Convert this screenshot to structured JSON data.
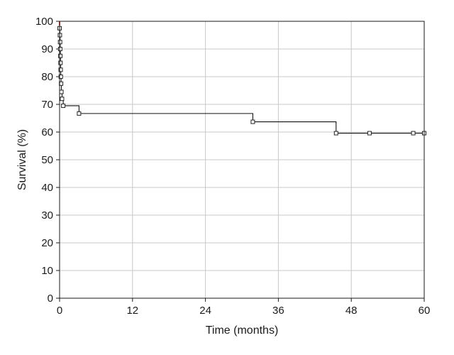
{
  "chart_data": {
    "type": "line",
    "subtype": "kaplan-meier-step",
    "title": "",
    "xlabel": "Time (months)",
    "ylabel": "Survival (%)",
    "xlim": [
      0,
      60
    ],
    "ylim": [
      0,
      100
    ],
    "x_ticks": [
      0,
      12,
      24,
      36,
      48,
      60
    ],
    "y_ticks": [
      0,
      10,
      20,
      30,
      40,
      50,
      60,
      70,
      80,
      90,
      100
    ],
    "grid": true,
    "legend": "none",
    "colors": {
      "line": "#111111",
      "censor": "#222222",
      "start_marker": "#e05050",
      "grid": "#c8c8c8"
    },
    "series": [
      {
        "steps": [
          {
            "x": 0,
            "y": 100
          },
          {
            "x": 0,
            "y": 97.5
          },
          {
            "x": 0.05,
            "y": 95
          },
          {
            "x": 0.08,
            "y": 92.5
          },
          {
            "x": 0.1,
            "y": 90
          },
          {
            "x": 0.12,
            "y": 87.5
          },
          {
            "x": 0.15,
            "y": 85
          },
          {
            "x": 0.18,
            "y": 82.5
          },
          {
            "x": 0.2,
            "y": 80
          },
          {
            "x": 0.25,
            "y": 77.5
          },
          {
            "x": 0.3,
            "y": 74.5
          },
          {
            "x": 0.4,
            "y": 72
          },
          {
            "x": 0.6,
            "y": 69.5
          },
          {
            "x": 3.2,
            "y": 66.7
          },
          {
            "x": 31.8,
            "y": 63.7
          },
          {
            "x": 45.5,
            "y": 59.6
          }
        ],
        "end_x": 60,
        "censored": [
          {
            "x": 0,
            "y": 97.5
          },
          {
            "x": 0.05,
            "y": 95
          },
          {
            "x": 0.08,
            "y": 92.5
          },
          {
            "x": 0.1,
            "y": 90
          },
          {
            "x": 0.12,
            "y": 87.5
          },
          {
            "x": 0.15,
            "y": 85
          },
          {
            "x": 0.18,
            "y": 82.5
          },
          {
            "x": 0.2,
            "y": 80
          },
          {
            "x": 0.25,
            "y": 77.5
          },
          {
            "x": 0.3,
            "y": 74.5
          },
          {
            "x": 0.4,
            "y": 72
          },
          {
            "x": 0.6,
            "y": 69.5
          },
          {
            "x": 3.2,
            "y": 66.7
          },
          {
            "x": 31.8,
            "y": 63.7
          },
          {
            "x": 45.5,
            "y": 59.6
          },
          {
            "x": 51,
            "y": 59.6
          },
          {
            "x": 58.2,
            "y": 59.6
          },
          {
            "x": 60,
            "y": 59.6
          }
        ]
      }
    ]
  }
}
